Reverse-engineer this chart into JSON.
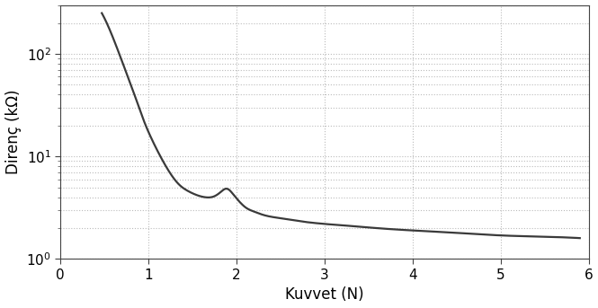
{
  "xlabel": "Kuvvet (N)",
  "ylabel": "Direnç (kΩ)",
  "xlim": [
    0,
    6
  ],
  "ylim": [
    1.0,
    300.0
  ],
  "x_ticks": [
    0,
    1,
    2,
    3,
    4,
    5,
    6
  ],
  "y_ticks": [
    1,
    10,
    100
  ],
  "y_tick_labels": [
    "10$^0$",
    "10$^1$",
    "10$^2$"
  ],
  "line_color": "#3a3a3a",
  "line_width": 1.6,
  "background_color": "#ffffff",
  "plot_bg_color": "#ffffff",
  "grid_color": "#bbbbbb",
  "grid_style": ":",
  "xlabel_fontsize": 12,
  "ylabel_fontsize": 12,
  "tick_fontsize": 11,
  "curve_x": [
    0.47,
    0.55,
    0.65,
    0.75,
    0.85,
    0.95,
    1.05,
    1.15,
    1.25,
    1.35,
    1.45,
    1.55,
    1.65,
    1.75,
    1.82,
    1.88,
    1.92,
    1.96,
    2.0,
    2.05,
    2.1,
    2.2,
    2.3,
    2.5,
    2.7,
    3.0,
    3.3,
    3.6,
    4.0,
    4.5,
    5.0,
    5.5,
    5.9
  ],
  "curve_y": [
    250,
    180,
    110,
    65,
    38,
    22,
    14,
    9.5,
    6.8,
    5.3,
    4.6,
    4.2,
    4.0,
    4.1,
    4.5,
    4.85,
    4.7,
    4.3,
    3.9,
    3.5,
    3.2,
    2.9,
    2.7,
    2.5,
    2.35,
    2.2,
    2.1,
    2.0,
    1.9,
    1.8,
    1.7,
    1.65,
    1.6
  ]
}
